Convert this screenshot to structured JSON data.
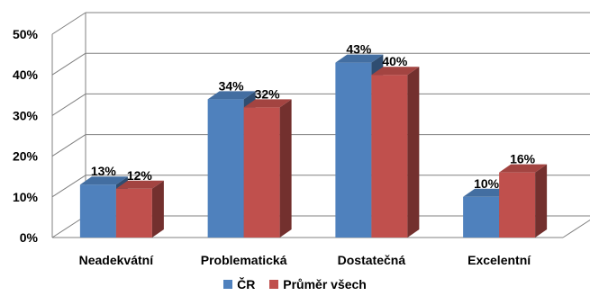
{
  "chart_data": {
    "type": "bar",
    "categories": [
      "Neadekvátní",
      "Problematická",
      "Dostatečná",
      "Excelentní"
    ],
    "series": [
      {
        "name": "ČR",
        "values": [
          13,
          34,
          43,
          10
        ],
        "labels": [
          "13%",
          "34%",
          "43%",
          "10%"
        ],
        "color": "#4F81BD"
      },
      {
        "name": "Průměr všech",
        "values": [
          12,
          32,
          40,
          16
        ],
        "labels": [
          "12%",
          "32%",
          "40%",
          "16%"
        ],
        "color": "#C0504D"
      }
    ],
    "ylim": [
      0,
      50
    ],
    "yticks": [
      0,
      10,
      20,
      30,
      40,
      50
    ],
    "ytick_labels": [
      "0%",
      "10%",
      "20%",
      "30%",
      "40%",
      "50%"
    ],
    "grid": true,
    "three_d": true,
    "legend_position": "bottom"
  },
  "legend": {
    "items": [
      {
        "label": "ČR",
        "color": "#4F81BD"
      },
      {
        "label": "Průměr všech",
        "color": "#C0504D"
      }
    ]
  }
}
